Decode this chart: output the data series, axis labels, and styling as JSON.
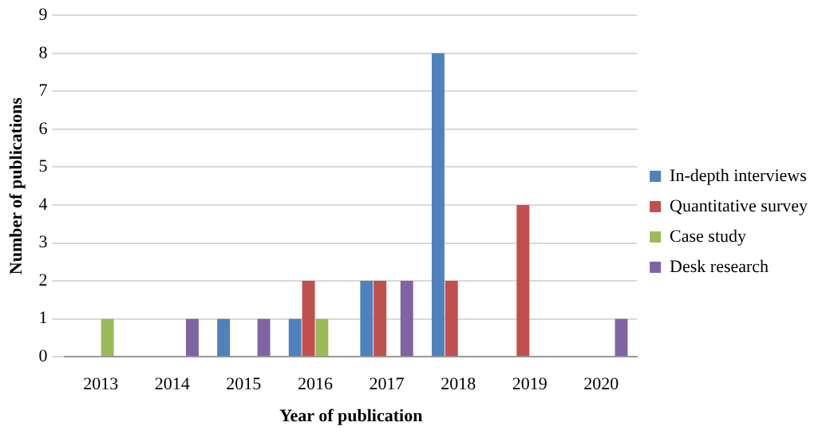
{
  "chart_data": {
    "type": "bar",
    "xlabel": "Year of publication",
    "ylabel": "Number of publications",
    "categories": [
      "2013",
      "2014",
      "2015",
      "2016",
      "2017",
      "2018",
      "2019",
      "2020"
    ],
    "series": [
      {
        "name": "In-depth interviews",
        "color": "#4f81bd",
        "values": [
          0,
          0,
          1,
          1,
          2,
          8,
          0,
          0
        ]
      },
      {
        "name": "Quantitative survey",
        "color": "#c0504d",
        "values": [
          0,
          0,
          0,
          2,
          2,
          2,
          4,
          0
        ]
      },
      {
        "name": "Case study",
        "color": "#9bbb59",
        "values": [
          1,
          0,
          0,
          1,
          0,
          0,
          0,
          0
        ]
      },
      {
        "name": "Desk research",
        "color": "#8064a2",
        "values": [
          0,
          1,
          1,
          0,
          2,
          0,
          0,
          1
        ]
      }
    ],
    "ylim": [
      0,
      9
    ],
    "yticks": [
      0,
      1,
      2,
      3,
      4,
      5,
      6,
      7,
      8,
      9
    ],
    "grid": "y",
    "legend": "right"
  }
}
